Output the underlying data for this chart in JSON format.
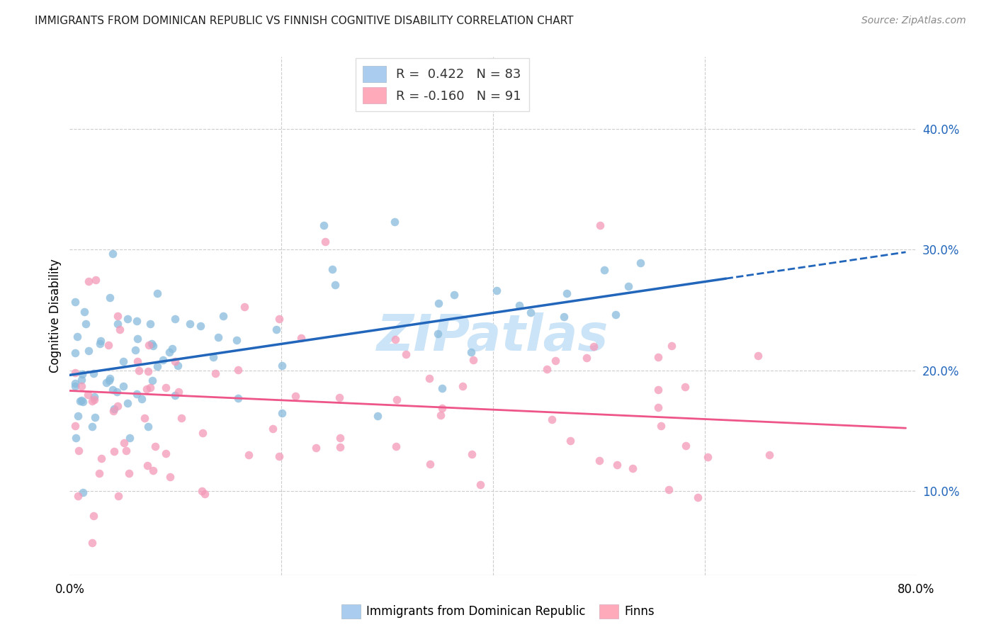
{
  "title": "IMMIGRANTS FROM DOMINICAN REPUBLIC VS FINNISH COGNITIVE DISABILITY CORRELATION CHART",
  "source": "Source: ZipAtlas.com",
  "ylabel": "Cognitive Disability",
  "right_yticks": [
    "40.0%",
    "30.0%",
    "20.0%",
    "10.0%"
  ],
  "right_ytick_vals": [
    0.4,
    0.3,
    0.2,
    0.1
  ],
  "xlim": [
    0.0,
    0.8
  ],
  "ylim": [
    0.03,
    0.46
  ],
  "series1_R": 0.422,
  "series1_N": 83,
  "series2_R": -0.16,
  "series2_N": 91,
  "dot_color1": "#88bbdd",
  "dot_color2": "#f499b8",
  "trend_color1": "#2266bb",
  "trend_color2": "#ee5588",
  "legend_patch_color1": "#aaccee",
  "legend_patch_color2": "#ffaabb",
  "watermark_color": "#cce4f7",
  "grid_color": "#cccccc",
  "dot_size": 70,
  "dot_alpha": 0.75,
  "trend1_solid_end": 0.62,
  "trend1_start": 0.0,
  "trend1_end": 0.79,
  "trend2_start": 0.0,
  "trend2_end": 0.79,
  "blue_trend_y_at_0": 0.196,
  "blue_trend_y_at_079": 0.298,
  "pink_trend_y_at_0": 0.183,
  "pink_trend_y_at_079": 0.152
}
